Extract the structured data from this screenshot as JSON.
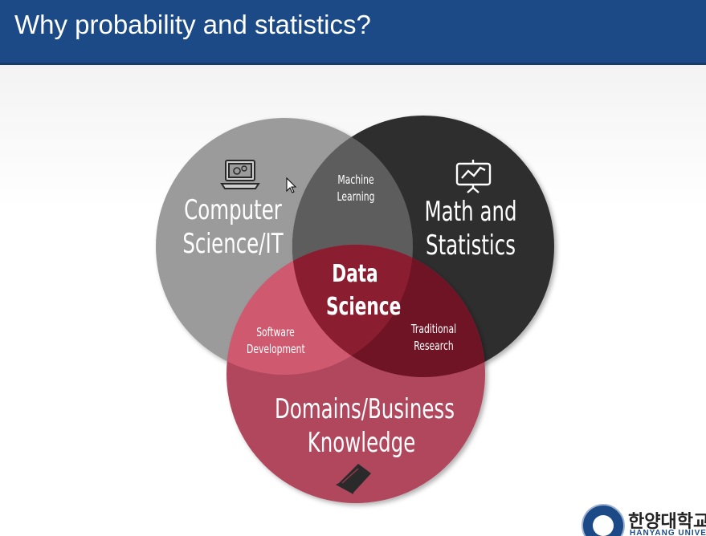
{
  "slide": {
    "title": "Why probability and statistics?"
  },
  "venn": {
    "circles": {
      "computer_science": "Computer Science/IT",
      "math_statistics": "Math and Statistics",
      "domains_business": "Domains/Business Knowledge"
    },
    "overlaps": {
      "machine_learning": "Machine Learning",
      "software_development": "Software Development",
      "traditional_research": "Traditional Research",
      "data_science": "Data Science"
    },
    "colors": {
      "computer_science": "#9b9b9b",
      "math_statistics": "#2f2f2f",
      "domains_business": "#b0475d",
      "data_science": "#8a1e30"
    },
    "icons": {
      "computer_science": "laptop-gears-icon",
      "math_statistics": "presentation-chart-icon",
      "domains_business": "book-icon"
    }
  },
  "logo": {
    "korean_name": "한양대학교",
    "english_name": "HANYANG UNIVERSITY"
  }
}
